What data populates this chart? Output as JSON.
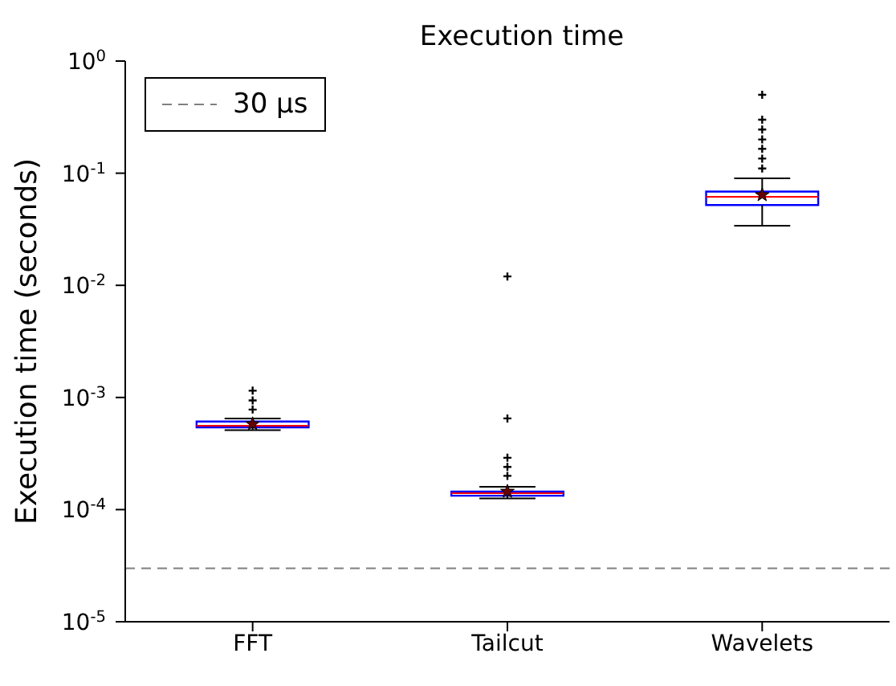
{
  "chart_data": {
    "type": "box",
    "title": "Execution time",
    "ylabel": "Execution time (seconds)",
    "categories": [
      "FFT",
      "Tailcut",
      "Wavelets"
    ],
    "color": "#0000ff",
    "boxes": [
      {
        "low": 0.00051,
        "q1": 0.00054,
        "median": 0.00056,
        "q3": 0.00061,
        "high": 0.00065,
        "mean": 0.00058,
        "outliers": [
          0.00078,
          0.00094,
          0.00115
        ]
      },
      {
        "low": 0.000126,
        "q1": 0.000133,
        "median": 0.00014,
        "q3": 0.000145,
        "high": 0.00016,
        "mean": 0.000145,
        "outliers": [
          0.0002,
          0.00024,
          0.00029,
          0.00065,
          0.012
        ]
      },
      {
        "low": 0.034,
        "q1": 0.052,
        "median": 0.0617,
        "q3": 0.0686,
        "high": 0.09,
        "mean": 0.064,
        "outliers": [
          0.11,
          0.135,
          0.165,
          0.2,
          0.245,
          0.3,
          0.5
        ]
      }
    ],
    "log": true,
    "ylim": [
      1e-05,
      1
    ],
    "yticks": [
      {
        "value": 1e-05,
        "label": "10$^{-5}$"
      },
      {
        "value": 0.0001,
        "label": "10$^{-4}$"
      },
      {
        "value": 0.001,
        "label": "10$^{-3}$"
      },
      {
        "value": 0.01,
        "label": "10$^{-2}$"
      },
      {
        "value": 0.1,
        "label": "10$^{-1}$"
      },
      {
        "value": 1,
        "label": "10$^{0}$"
      }
    ],
    "ref_lines": [
      {
        "axis": "y",
        "value": 3e-05,
        "label": "30 μs",
        "color": "#808080",
        "line_style": "dashed"
      }
    ],
    "legend": "top left",
    "grid": false
  }
}
